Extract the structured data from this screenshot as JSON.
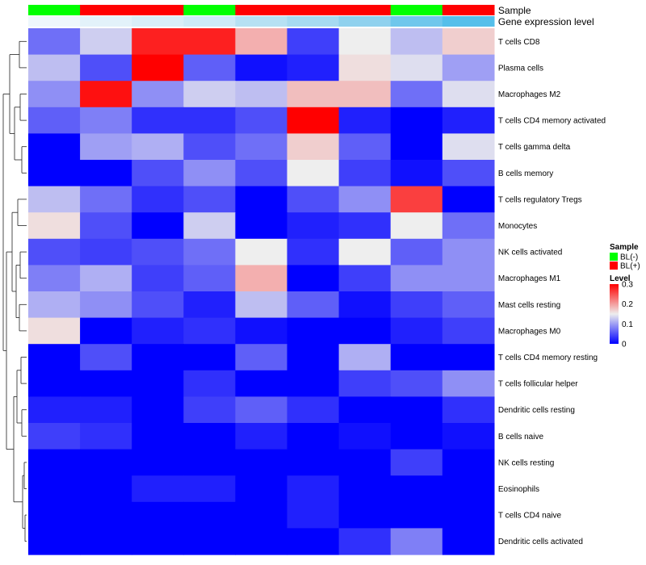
{
  "chart_data": {
    "type": "heatmap",
    "rows": [
      "T cells CD8",
      "Plasma cells",
      "Macrophages M2",
      "T cells CD4 memory activated",
      "T cells gamma delta",
      "B cells memory",
      "T cells regulatory  Tregs",
      "Monocytes",
      "NK cells activated",
      "Macrophages M1",
      "Mast cells resting",
      "Macrophages M0",
      "T cells CD4 memory resting",
      "T cells follicular helper",
      "Dendritic cells resting",
      "B cells naive",
      "NK cells resting",
      "Eosinophils",
      "T cells CD4 naive",
      "Dendritic cells activated"
    ],
    "columns_count": 9,
    "values": [
      [
        0.07,
        0.13,
        0.28,
        0.28,
        0.19,
        0.04,
        0.15,
        0.12,
        0.17
      ],
      [
        0.12,
        0.05,
        0.3,
        0.06,
        0.01,
        0.02,
        0.16,
        0.14,
        0.1
      ],
      [
        0.09,
        0.29,
        0.09,
        0.13,
        0.12,
        0.18,
        0.18,
        0.07,
        0.14
      ],
      [
        0.06,
        0.08,
        0.03,
        0.03,
        0.05,
        0.31,
        0.02,
        0.0,
        0.02
      ],
      [
        0.0,
        0.1,
        0.11,
        0.05,
        0.07,
        0.17,
        0.06,
        0.0,
        0.14
      ],
      [
        0.0,
        0.0,
        0.05,
        0.09,
        0.05,
        0.15,
        0.04,
        0.01,
        0.05
      ],
      [
        0.12,
        0.07,
        0.03,
        0.05,
        0.0,
        0.05,
        0.09,
        0.26,
        0.0
      ],
      [
        0.16,
        0.05,
        0.0,
        0.13,
        0.0,
        0.02,
        0.03,
        0.15,
        0.07
      ],
      [
        0.05,
        0.04,
        0.05,
        0.07,
        0.15,
        0.03,
        0.15,
        0.06,
        0.09
      ],
      [
        0.08,
        0.11,
        0.04,
        0.06,
        0.19,
        0.0,
        0.04,
        0.09,
        0.09
      ],
      [
        0.11,
        0.09,
        0.05,
        0.02,
        0.12,
        0.06,
        0.01,
        0.04,
        0.06
      ],
      [
        0.16,
        0.0,
        0.02,
        0.03,
        0.01,
        0.0,
        0.0,
        0.02,
        0.04
      ],
      [
        0.0,
        0.05,
        0.0,
        0.0,
        0.06,
        0.0,
        0.11,
        0.0,
        0.0
      ],
      [
        0.0,
        0.0,
        0.0,
        0.03,
        0.0,
        0.0,
        0.04,
        0.05,
        0.09
      ],
      [
        0.02,
        0.02,
        0.0,
        0.04,
        0.06,
        0.03,
        0.0,
        0.0,
        0.03
      ],
      [
        0.04,
        0.03,
        0.0,
        0.0,
        0.02,
        0.0,
        0.01,
        0.0,
        0.01
      ],
      [
        0.0,
        0.0,
        0.0,
        0.0,
        0.0,
        0.0,
        0.0,
        0.04,
        0.0
      ],
      [
        0.0,
        0.0,
        0.02,
        0.02,
        0.0,
        0.02,
        0.0,
        0.0,
        0.0
      ],
      [
        0.0,
        0.0,
        0.0,
        0.0,
        0.0,
        0.02,
        0.0,
        0.0,
        0.0
      ],
      [
        0.0,
        0.0,
        0.0,
        0.0,
        0.0,
        0.0,
        0.03,
        0.08,
        0.0
      ]
    ],
    "color_scale": {
      "min": 0,
      "mid": 0.15,
      "max": 0.3,
      "low_color": "#0000ff",
      "mid_color": "#eeeeee",
      "high_color": "#ff0000"
    },
    "annotations": [
      {
        "name": "Sample",
        "colors": [
          "#00ff00",
          "#ff0000",
          "#ff0000",
          "#00ff00",
          "#ff0000",
          "#ff0000",
          "#ff0000",
          "#00ff00",
          "#ff0000"
        ]
      },
      {
        "name": "Gene expression level",
        "colors": [
          "#eef7fc",
          "#e3f2fa",
          "#d9eef8",
          "#cdeaf7",
          "#b6e1f3",
          "#a6daf1",
          "#8fd1ee",
          "#6fc7ec",
          "#55bfea"
        ]
      }
    ],
    "legend": {
      "position": "right",
      "sample_title": "Sample",
      "sample_items": [
        {
          "label": "BL(-)",
          "color": "#00ff00"
        },
        {
          "label": "BL(+)",
          "color": "#ff0000"
        }
      ],
      "level_title": "Level",
      "level_ticks": [
        "0.3",
        "0.2",
        "0.1",
        "0"
      ],
      "level_tick_values": [
        0.3,
        0.2,
        0.1,
        0
      ]
    },
    "row_dendrogram": true
  }
}
